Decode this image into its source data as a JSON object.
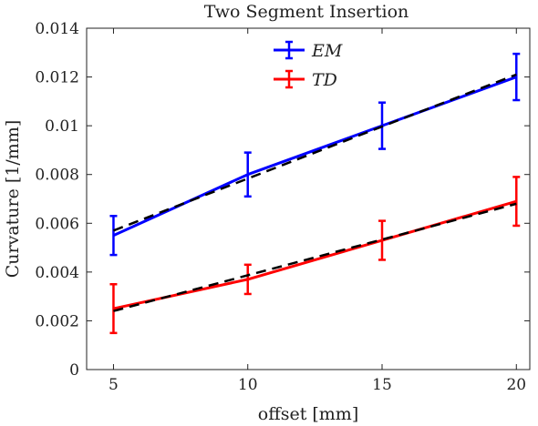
{
  "chart_data": {
    "type": "line",
    "title": "Two Segment Insertion",
    "xlabel": "offset [mm]",
    "ylabel": "Curvature [1/mm]",
    "xlim": [
      4,
      20.5
    ],
    "ylim": [
      0,
      0.014
    ],
    "x_ticks": [
      5,
      10,
      15,
      20
    ],
    "x_tick_labels": [
      "5",
      "10",
      "15",
      "20"
    ],
    "y_ticks": [
      0,
      0.002,
      0.004,
      0.006,
      0.008,
      0.01,
      0.012,
      0.014
    ],
    "y_tick_labels": [
      "0",
      "0.002",
      "0.004",
      "0.006",
      "0.008",
      "0.01",
      "0.012",
      "0.014"
    ],
    "legend_position": "top-center",
    "series": [
      {
        "name": "EM",
        "color": "#0000ff",
        "x": [
          5,
          10,
          15,
          20
        ],
        "y": [
          0.0055,
          0.008,
          0.01,
          0.012
        ],
        "error": [
          0.0008,
          0.0009,
          0.00095,
          0.00095
        ]
      },
      {
        "name": "TD",
        "color": "#ff0000",
        "x": [
          5,
          10,
          15,
          20
        ],
        "y": [
          0.0025,
          0.0037,
          0.0053,
          0.0069
        ],
        "error": [
          0.001,
          0.0006,
          0.0008,
          0.001
        ]
      }
    ],
    "fit_lines": [
      {
        "style": "dashed",
        "color": "#000000",
        "x": [
          5,
          20
        ],
        "y": [
          0.0057,
          0.0121
        ]
      },
      {
        "style": "dashed",
        "color": "#000000",
        "x": [
          5,
          20
        ],
        "y": [
          0.0024,
          0.0068
        ]
      }
    ]
  }
}
